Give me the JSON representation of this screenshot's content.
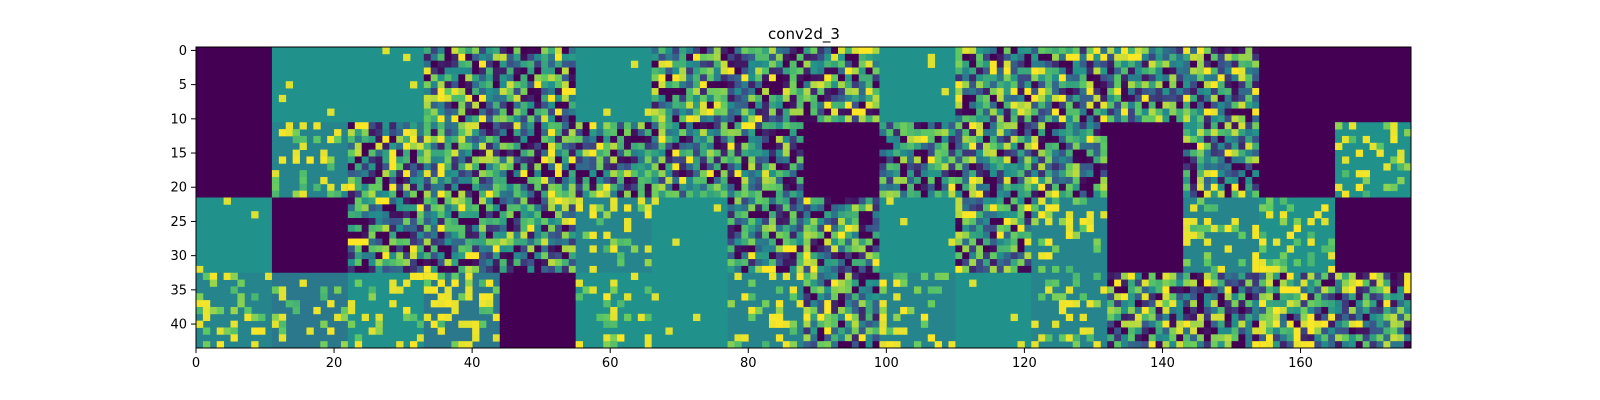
{
  "chart_data": {
    "type": "heatmap",
    "title": "conv2d_3",
    "xlabel": "",
    "ylabel": "",
    "colormap": "viridis",
    "colormap_colors": [
      "#440154",
      "#3b528b",
      "#21918c",
      "#5ec962",
      "#fde725"
    ],
    "x_range": [
      0,
      176
    ],
    "y_range": [
      0,
      44
    ],
    "y_inverted": true,
    "x_ticks": [
      0,
      20,
      40,
      60,
      80,
      100,
      120,
      140,
      160
    ],
    "y_ticks": [
      0,
      5,
      10,
      15,
      20,
      25,
      30,
      35,
      40
    ],
    "grid": false,
    "tile_grid": {
      "rows": 4,
      "cols": 16,
      "tile_size": 11
    },
    "tiles": [
      [
        "dead",
        "flat",
        "flat",
        "active",
        "active",
        "flat",
        "active",
        "active",
        "active",
        "flat",
        "active",
        "active",
        "active",
        "active",
        "dead",
        "dead"
      ],
      [
        "dead",
        "sparse",
        "active",
        "active",
        "active",
        "active",
        "active",
        "active",
        "dead",
        "active",
        "active",
        "active",
        "dead",
        "active",
        "dead",
        "sparse"
      ],
      [
        "flat",
        "dead",
        "active",
        "active",
        "active",
        "sparse",
        "flat",
        "active",
        "active",
        "flat",
        "active",
        "sparse",
        "dead",
        "sparse",
        "sparse",
        "dead"
      ],
      [
        "sparse",
        "sparse",
        "sparse",
        "sparse",
        "dead",
        "sparse",
        "flat",
        "sparse",
        "active",
        "sparse",
        "flat",
        "sparse",
        "active",
        "active",
        "active",
        "active"
      ]
    ],
    "tile_base_levels": [
      [
        0.0,
        0.5,
        0.5,
        0.45,
        0.4,
        0.5,
        0.45,
        0.35,
        0.45,
        0.5,
        0.45,
        0.45,
        0.4,
        0.45,
        0.0,
        0.0
      ],
      [
        0.0,
        0.45,
        0.4,
        0.45,
        0.35,
        0.4,
        0.35,
        0.35,
        0.0,
        0.35,
        0.4,
        0.35,
        0.0,
        0.4,
        0.0,
        0.5
      ],
      [
        0.5,
        0.0,
        0.35,
        0.4,
        0.4,
        0.45,
        0.5,
        0.35,
        0.4,
        0.5,
        0.45,
        0.45,
        0.0,
        0.45,
        0.5,
        0.0
      ],
      [
        0.45,
        0.4,
        0.5,
        0.4,
        0.0,
        0.5,
        0.5,
        0.45,
        0.35,
        0.45,
        0.5,
        0.45,
        0.45,
        0.4,
        0.5,
        0.45
      ]
    ]
  }
}
